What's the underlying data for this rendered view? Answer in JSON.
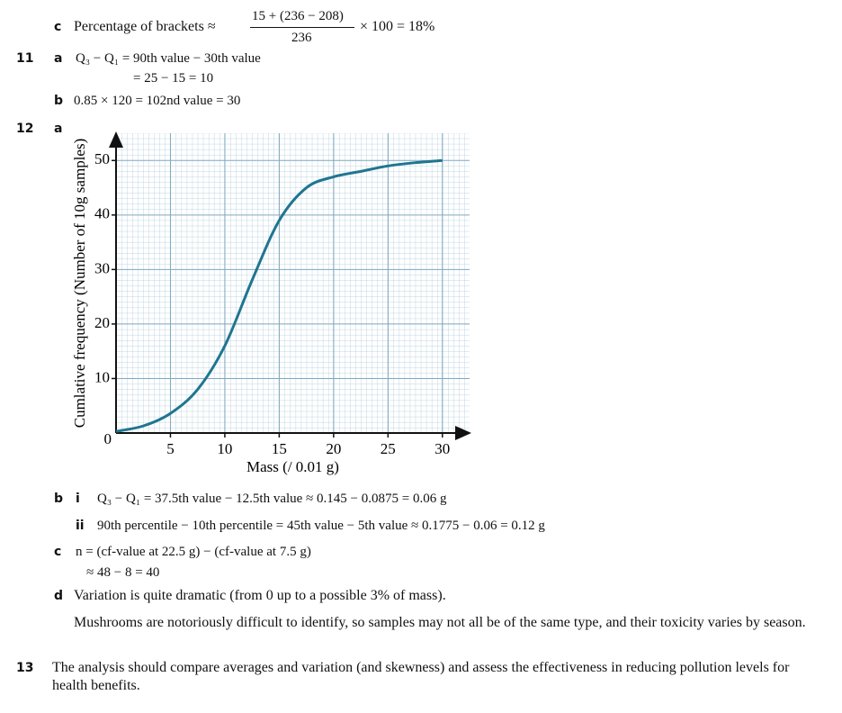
{
  "q10c": {
    "label": "c",
    "text": "Percentage of brackets ≈",
    "numerator": "15 + (236 − 208)",
    "denominator": "236",
    "result": "× 100 = 18%"
  },
  "q11": {
    "number": "11",
    "a": {
      "label": "a",
      "lines": [
        "Q₃ − Q₁ = 90th value − 30th value",
        "= 25 − 15 = 10"
      ]
    },
    "b": {
      "label": "b",
      "text": "0.85 × 120 = 102nd value = 30"
    }
  },
  "q12": {
    "number": "12",
    "a": {
      "label": "a"
    },
    "b": {
      "label": "b",
      "i": {
        "label": "i",
        "text": "Q₃ − Q₁ = 37.5th value − 12.5th value ≈ 0.145 − 0.0875 = 0.06 g"
      },
      "ii": {
        "label": "ii",
        "text": "90th percentile − 10th percentile = 45th value − 5th value ≈ 0.1775 − 0.06 = 0.12 g"
      }
    },
    "c": {
      "label": "c",
      "lines": [
        "n = (cf-value at 22.5 g) − (cf-value at 7.5 g)",
        "≈ 48 − 8 = 40"
      ]
    },
    "d": {
      "label": "d",
      "paragraphs": [
        "Variation is quite dramatic (from 0 up to a possible 3% of mass).",
        "Mushrooms are notoriously difficult to identify, so samples may not all be of the same type, and their toxicity varies by season."
      ]
    }
  },
  "q13": {
    "number": "13",
    "text": "The analysis should compare averages and variation (and skewness) and assess the effectiveness in reducing pollution levels for health benefits."
  },
  "chart_data": {
    "type": "line",
    "x_label": "Mass (/ 0.01 g)",
    "y_label": "Cumlative frequency (Number of 10g samples)",
    "x": [
      0,
      2.5,
      5,
      7.5,
      10,
      12.5,
      15,
      17.5,
      20,
      22.5,
      25,
      27.5,
      30
    ],
    "values": [
      0.3,
      1.3,
      3.6,
      8,
      16,
      28,
      39,
      45,
      47,
      48,
      49,
      49.6,
      50
    ],
    "color": "#1f7590",
    "xlim": [
      0,
      32.5
    ],
    "ylim": [
      0,
      55
    ],
    "xticks": [
      5,
      10,
      15,
      20,
      25,
      30
    ],
    "yticks": [
      0,
      10,
      20,
      30,
      40,
      50
    ],
    "grid": true
  }
}
